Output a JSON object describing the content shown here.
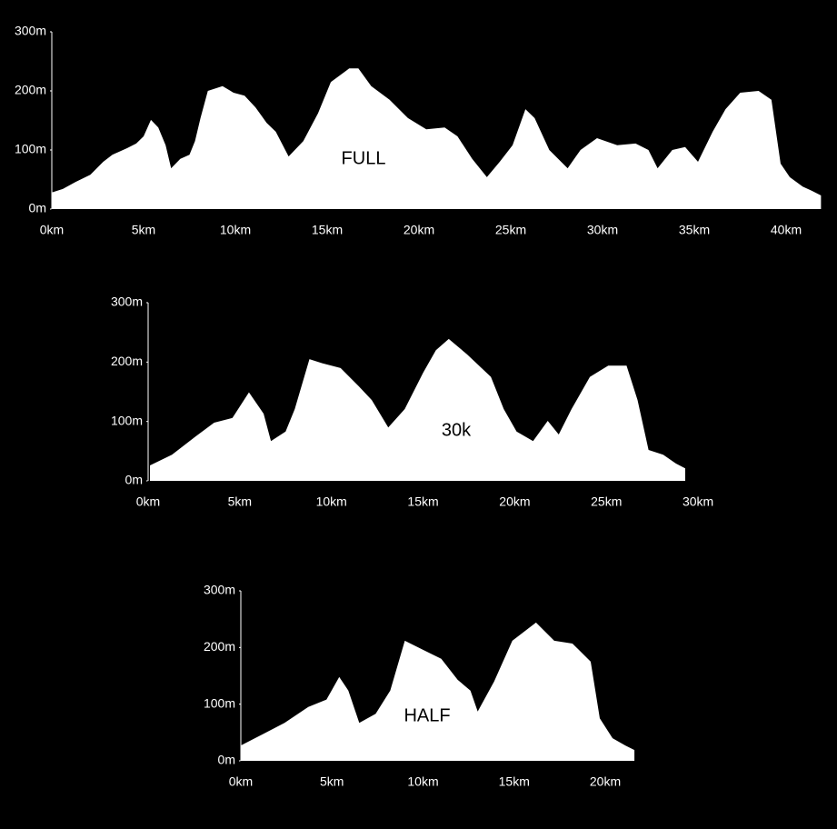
{
  "chart_data": [
    {
      "type": "area",
      "title": "FULL",
      "color": "#ffffff",
      "x": [
        0,
        0.6,
        1.3,
        2.1,
        2.8,
        3.3,
        4.1,
        4.6,
        5.0,
        5.4,
        5.8,
        6.2,
        6.5,
        7.0,
        7.5,
        7.8,
        8.1,
        8.5,
        9.3,
        9.9,
        10.5,
        11.1,
        11.7,
        12.2,
        12.9,
        13.7,
        14.5,
        15.2,
        16.2,
        16.7,
        17.4,
        18.4,
        19.4,
        20.4,
        21.4,
        22.1,
        22.9,
        23.7,
        24.4,
        25.1,
        25.8,
        26.3,
        27.1,
        28.1,
        28.8,
        29.7,
        30.8,
        31.8,
        32.5,
        33.0,
        33.8,
        34.5,
        35.2,
        36.0,
        36.7,
        37.5,
        38.5,
        39.2,
        39.7,
        40.2,
        40.9,
        41.4,
        41.9
      ],
      "values": [
        28,
        34,
        46,
        58,
        80,
        92,
        103,
        111,
        123,
        151,
        138,
        108,
        69,
        85,
        92,
        115,
        154,
        200,
        208,
        197,
        192,
        172,
        146,
        131,
        89,
        115,
        162,
        215,
        238,
        238,
        208,
        185,
        154,
        135,
        138,
        123,
        85,
        54,
        80,
        108,
        169,
        154,
        100,
        69,
        100,
        120,
        108,
        111,
        100,
        69,
        100,
        105,
        80,
        131,
        169,
        197,
        200,
        185,
        77,
        54,
        38,
        31,
        23
      ],
      "xlim": [
        0,
        42
      ],
      "xticks": [
        {
          "value": 0,
          "label": "0km"
        },
        {
          "value": 5,
          "label": "5km"
        },
        {
          "value": 10,
          "label": "10km"
        },
        {
          "value": 15,
          "label": "15km"
        },
        {
          "value": 20,
          "label": "20km"
        },
        {
          "value": 25,
          "label": "25km"
        },
        {
          "value": 30,
          "label": "30km"
        },
        {
          "value": 35,
          "label": "35km"
        },
        {
          "value": 40,
          "label": "40km"
        }
      ],
      "ylim": [
        0,
        300
      ],
      "yticks": [
        {
          "value": 0,
          "label": "0m"
        },
        {
          "value": 100,
          "label": "100m"
        },
        {
          "value": 200,
          "label": "200m"
        },
        {
          "value": 300,
          "label": "300m"
        }
      ]
    },
    {
      "type": "area",
      "title": "30k",
      "color": "#ffffff",
      "x": [
        0.1,
        1.3,
        2.6,
        3.6,
        4.6,
        5.5,
        6.3,
        6.7,
        7.5,
        8.0,
        8.8,
        9.5,
        10.5,
        11.5,
        12.2,
        13.1,
        14.0,
        15.0,
        15.7,
        16.4,
        17.4,
        18.7,
        19.4,
        20.1,
        21.0,
        21.8,
        22.4,
        23.1,
        24.1,
        25.1,
        26.1,
        26.7,
        27.3,
        28.1,
        28.8,
        29.3
      ],
      "values": [
        26,
        44,
        75,
        98,
        106,
        149,
        113,
        67,
        83,
        121,
        205,
        198,
        190,
        159,
        136,
        90,
        121,
        182,
        220,
        239,
        213,
        175,
        121,
        83,
        67,
        101,
        78,
        121,
        175,
        194,
        194,
        136,
        52,
        44,
        29,
        21
      ],
      "xlim": [
        0,
        30
      ],
      "xticks": [
        {
          "value": 0,
          "label": "0km"
        },
        {
          "value": 5,
          "label": "5km"
        },
        {
          "value": 10,
          "label": "10km"
        },
        {
          "value": 15,
          "label": "15km"
        },
        {
          "value": 20,
          "label": "20km"
        },
        {
          "value": 25,
          "label": "25km"
        },
        {
          "value": 30,
          "label": "30km"
        }
      ],
      "ylim": [
        0,
        300
      ],
      "yticks": [
        {
          "value": 0,
          "label": "0m"
        },
        {
          "value": 100,
          "label": "100m"
        },
        {
          "value": 200,
          "label": "200m"
        },
        {
          "value": 300,
          "label": "300m"
        }
      ]
    },
    {
      "type": "area",
      "title": "HALF",
      "color": "#ffffff",
      "x": [
        0,
        1.2,
        2.4,
        3.7,
        4.7,
        5.4,
        5.9,
        6.5,
        7.4,
        8.2,
        9.0,
        10.0,
        11.0,
        11.9,
        12.6,
        13.0,
        13.9,
        14.9,
        16.2,
        17.2,
        18.2,
        19.2,
        19.7,
        20.4,
        21.1,
        21.6
      ],
      "values": [
        27,
        47,
        67,
        95,
        108,
        148,
        124,
        67,
        83,
        124,
        212,
        196,
        180,
        143,
        124,
        87,
        140,
        212,
        244,
        212,
        207,
        175,
        75,
        40,
        27,
        19
      ],
      "xlim": [
        0,
        22
      ],
      "xticks": [
        {
          "value": 0,
          "label": "0km"
        },
        {
          "value": 5,
          "label": "5km"
        },
        {
          "value": 10,
          "label": "10km"
        },
        {
          "value": 15,
          "label": "15km"
        },
        {
          "value": 20,
          "label": "20km"
        }
      ],
      "ylim": [
        0,
        300
      ],
      "yticks": [
        {
          "value": 0,
          "label": "0m"
        },
        {
          "value": 100,
          "label": "100m"
        },
        {
          "value": 200,
          "label": "200m"
        },
        {
          "value": 300,
          "label": "300m"
        }
      ]
    }
  ]
}
